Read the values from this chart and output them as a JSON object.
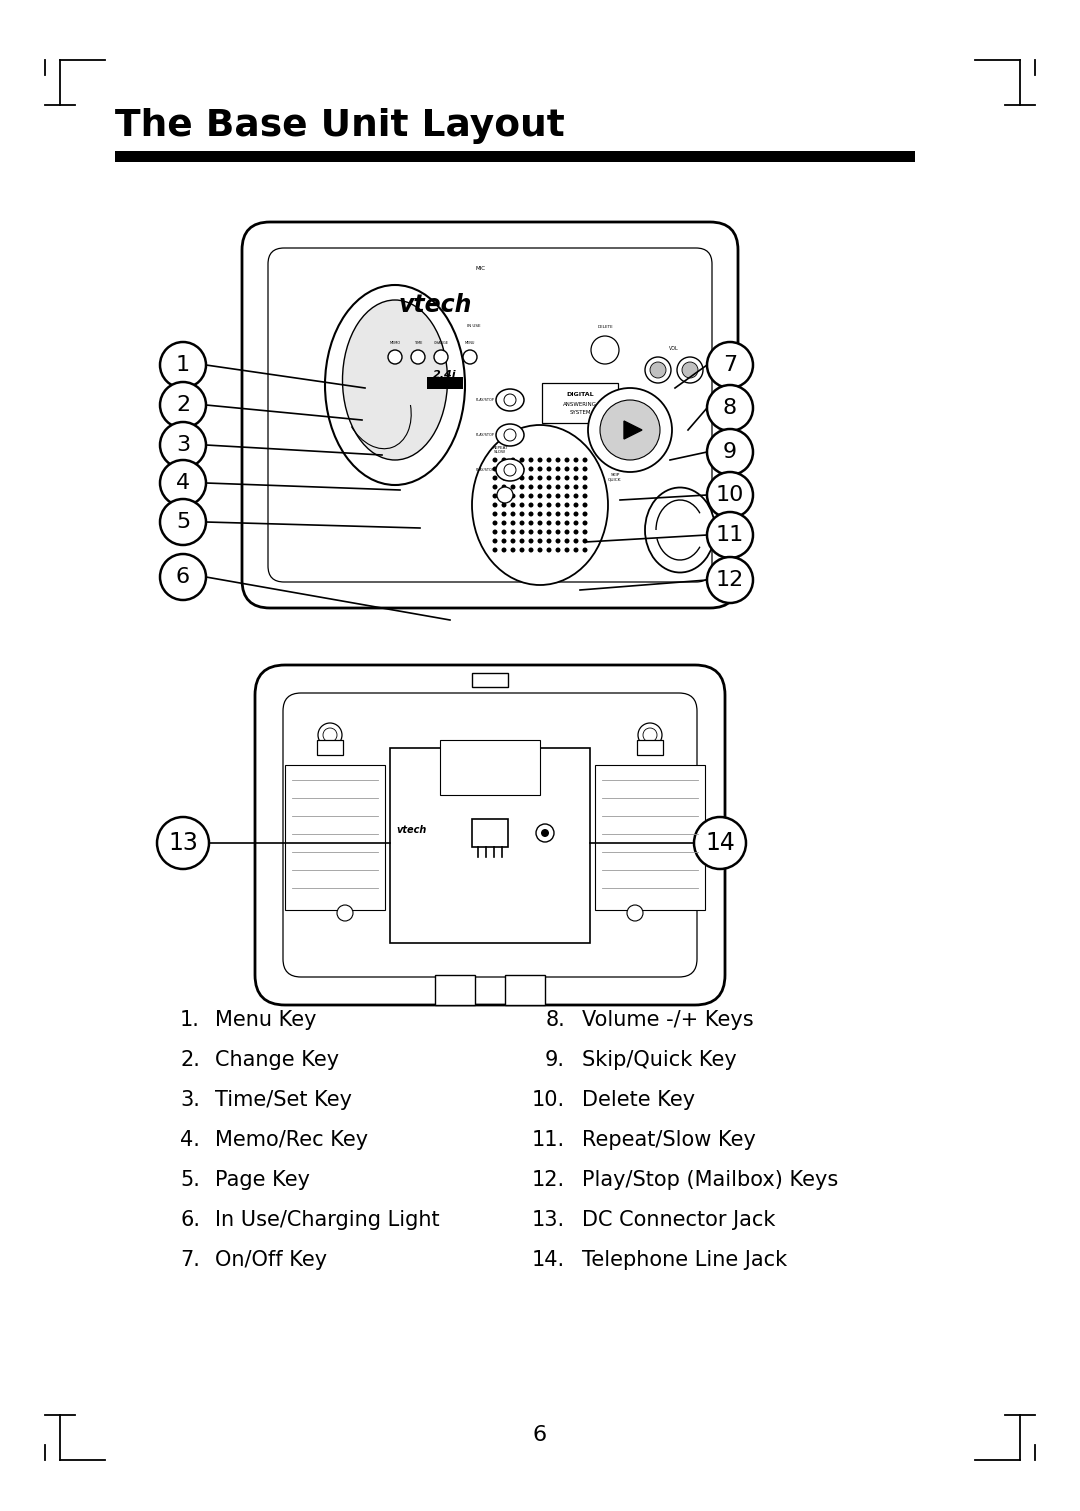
{
  "title": "The Base Unit Layout",
  "background_color": "#ffffff",
  "text_color": "#000000",
  "page_number": "6",
  "left_items": [
    {
      "num": "1",
      "label": "Menu Key"
    },
    {
      "num": "2",
      "label": "Change Key"
    },
    {
      "num": "3",
      "label": "Time/Set Key"
    },
    {
      "num": "4",
      "label": "Memo/Rec Key"
    },
    {
      "num": "5",
      "label": "Page Key"
    },
    {
      "num": "6",
      "label": "In Use/Charging Light"
    },
    {
      "num": "7",
      "label": "On/Off Key"
    }
  ],
  "right_items": [
    {
      "num": "8",
      "label": "Volume -/+ Keys"
    },
    {
      "num": "9",
      "label": "Skip/Quick Key"
    },
    {
      "num": "10",
      "label": "Delete Key"
    },
    {
      "num": "11",
      "label": "Repeat/Slow Key"
    },
    {
      "num": "12",
      "label": "Play/Stop (Mailbox) Keys"
    },
    {
      "num": "13",
      "label": "DC Connector Jack"
    },
    {
      "num": "14",
      "label": "Telephone Line Jack"
    }
  ]
}
